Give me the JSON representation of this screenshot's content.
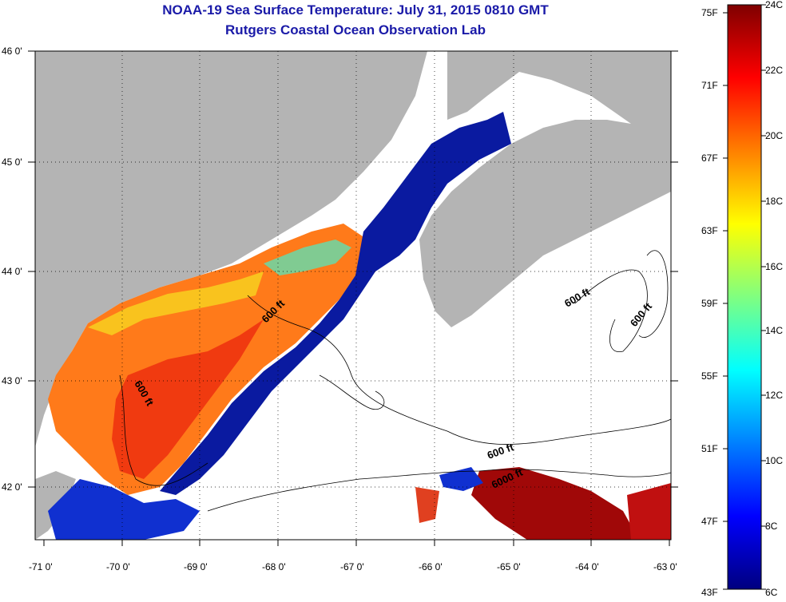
{
  "header": {
    "title": "NOAA-19 Sea Surface Temperature:  July 31, 2015 0810 GMT",
    "subtitle": "Rutgers Coastal Ocean Observation Lab"
  },
  "axes": {
    "longitude_ticks": [
      "-71 0'",
      "-70 0'",
      "-69 0'",
      "-68 0'",
      "-67 0'",
      "-66 0'",
      "-65 0'",
      "-64 0'",
      "-63 0'"
    ],
    "latitude_ticks": [
      "46 0'",
      "45 0'",
      "44 0'",
      "43 0'",
      "42 0'"
    ]
  },
  "colorbar": {
    "fahrenheit_labels": [
      "75F",
      "71F",
      "67F",
      "63F",
      "59F",
      "55F",
      "51F",
      "47F",
      "43F"
    ],
    "celsius_labels": [
      "24C",
      "22C",
      "20C",
      "18C",
      "16C",
      "14C",
      "12C",
      "10C",
      "8C",
      "6C"
    ],
    "colors": [
      "#00007f",
      "#0000ff",
      "#0080ff",
      "#00ffff",
      "#80ff80",
      "#ffff00",
      "#ff8000",
      "#ff0000",
      "#7f0000"
    ]
  },
  "contours": {
    "labels": [
      "600 ft",
      "600 ft",
      "600 ft",
      "600 ft",
      "600 ft",
      "6000 ft"
    ]
  },
  "colors": {
    "land": "#b4b4b4",
    "no_data": "#ffffff",
    "title": "#1a1aa8"
  },
  "chart_data": {
    "type": "heatmap",
    "variable": "Sea Surface Temperature",
    "units": [
      "F",
      "C"
    ],
    "colorbar_range_c": [
      6,
      24
    ],
    "colorbar_range_f": [
      43,
      75
    ],
    "lon_range": [
      -71,
      -63
    ],
    "lat_range": [
      41.5,
      46
    ]
  }
}
